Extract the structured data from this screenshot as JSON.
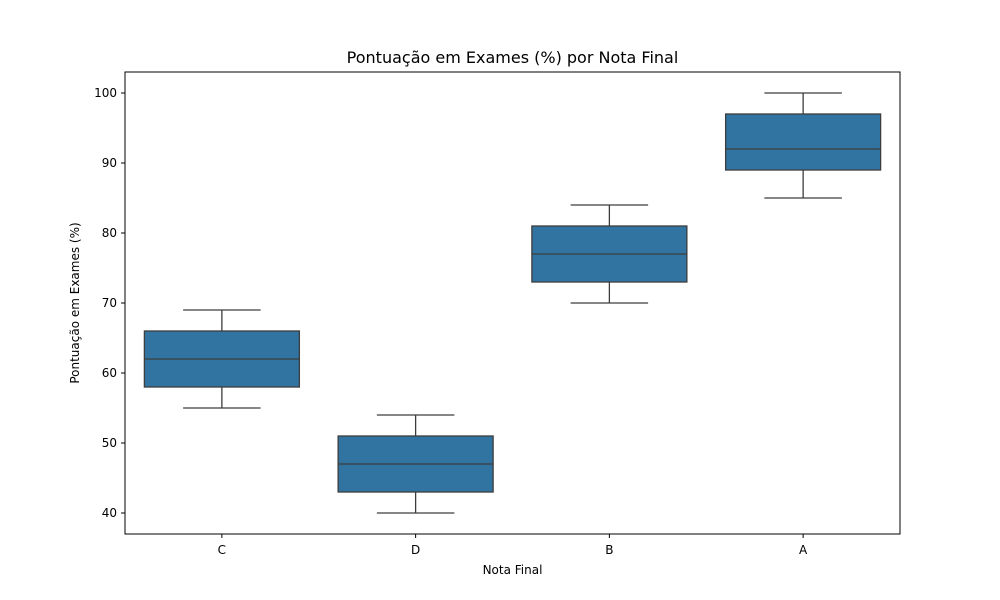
{
  "chart_data": {
    "type": "box",
    "title": "Pontuação em Exames (%) por Nota Final",
    "xlabel": "Nota Final",
    "ylabel": "Pontuação em Exames (%)",
    "categories": [
      "C",
      "D",
      "B",
      "A"
    ],
    "boxes": [
      {
        "category": "C",
        "min": 55,
        "q1": 58,
        "median": 62,
        "q3": 66,
        "max": 69
      },
      {
        "category": "D",
        "min": 40,
        "q1": 43,
        "median": 47,
        "q3": 51,
        "max": 54
      },
      {
        "category": "B",
        "min": 70,
        "q1": 73,
        "median": 77,
        "q3": 81,
        "max": 84
      },
      {
        "category": "A",
        "min": 85,
        "q1": 89,
        "median": 92,
        "q3": 97,
        "max": 100
      }
    ],
    "yticks": [
      40,
      50,
      60,
      70,
      80,
      90,
      100
    ],
    "ylim": [
      37,
      103
    ],
    "grid": false,
    "colors": {
      "box_fill": "#3274a1",
      "line": "#3d3d3d"
    }
  }
}
